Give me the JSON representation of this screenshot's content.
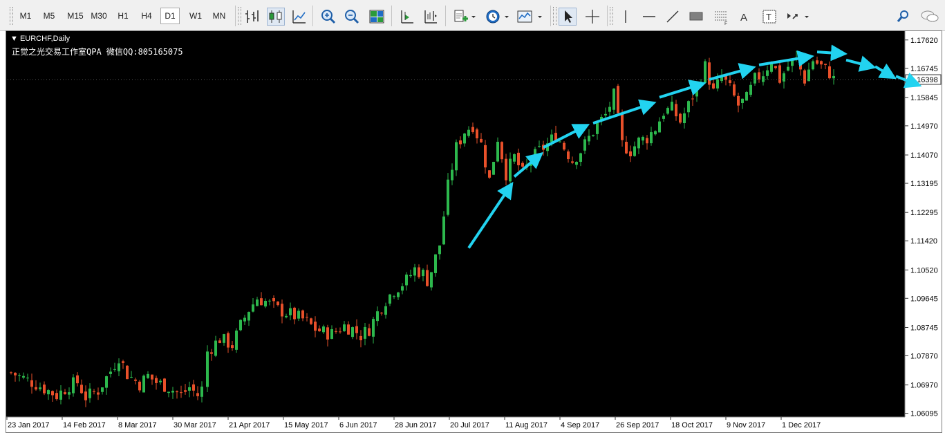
{
  "toolbar": {
    "timeframes": [
      "M1",
      "M5",
      "M15",
      "M30",
      "H1",
      "H4",
      "D1",
      "W1",
      "MN"
    ],
    "active_timeframe": "D1",
    "icons": [
      "bar-chart-icon",
      "candlestick-icon",
      "line-chart-icon",
      "zoom-in-icon",
      "zoom-out-icon",
      "tile-windows-icon",
      "auto-scroll-icon",
      "chart-shift-icon",
      "indicators-icon",
      "periodicity-clock-icon",
      "templates-icon",
      "cursor-icon",
      "crosshair-icon",
      "vertical-line-icon",
      "horizontal-line-icon",
      "trendline-icon",
      "rectangle-icon",
      "fibonacci-icon",
      "text-icon",
      "text-label-icon",
      "arrows-icon",
      "search-icon",
      "chat-icon"
    ]
  },
  "chart": {
    "symbol_label": "EURCHF,Daily",
    "annotation": "正觉之光交易工作室QPA 微信QQ:805165075",
    "colors": {
      "background": "#000000",
      "bull": "#2db84d",
      "bear": "#e8502a",
      "wick": "#cfcfcf",
      "arrow": "#22d3f0",
      "axis_text": "#000000"
    }
  },
  "chart_data": {
    "type": "candlestick",
    "symbol": "EURCHF",
    "timeframe": "Daily",
    "current_price": "1.16398",
    "y_ticks": [
      "1.17620",
      "1.16745",
      "1.15845",
      "1.14970",
      "1.14070",
      "1.13195",
      "1.12295",
      "1.11420",
      "1.10520",
      "1.09645",
      "1.08745",
      "1.07870",
      "1.06970",
      "1.06095"
    ],
    "x_ticks": [
      "23 Jan 2017",
      "14 Feb 2017",
      "8 Mar 2017",
      "30 Mar 2017",
      "21 Apr 2017",
      "15 May 2017",
      "6 Jun 2017",
      "28 Jun 2017",
      "20 Jul 2017",
      "11 Aug 2017",
      "4 Sep 2017",
      "26 Sep 2017",
      "18 Oct 2017",
      "9 Nov 2017",
      "1 Dec 2017"
    ],
    "ylim": [
      1.0598,
      1.1785
    ],
    "close_path": [
      [
        0,
        1.0735
      ],
      [
        6,
        1.07
      ],
      [
        11,
        1.0665
      ],
      [
        14,
        1.0695
      ],
      [
        16,
        1.0705
      ],
      [
        18,
        1.066
      ],
      [
        21,
        1.068
      ],
      [
        24,
        1.074
      ],
      [
        26,
        1.0785
      ],
      [
        28,
        1.073
      ],
      [
        31,
        1.07
      ],
      [
        33,
        1.0725
      ],
      [
        35,
        1.0705
      ],
      [
        38,
        1.069
      ],
      [
        41,
        1.0665
      ],
      [
        43,
        1.069
      ],
      [
        45,
        1.0665
      ],
      [
        46,
        1.0685
      ],
      [
        47,
        1.08
      ],
      [
        50,
        1.084
      ],
      [
        53,
        1.082
      ],
      [
        55,
        1.088
      ],
      [
        57,
        1.093
      ],
      [
        59,
        1.0965
      ],
      [
        61,
        1.0955
      ],
      [
        64,
        1.093
      ],
      [
        67,
        1.0915
      ],
      [
        70,
        1.09
      ],
      [
        73,
        1.087
      ],
      [
        75,
        1.086
      ],
      [
        77,
        1.0855
      ],
      [
        80,
        1.088
      ],
      [
        82,
        1.087
      ],
      [
        84,
        1.085
      ],
      [
        86,
        1.087
      ],
      [
        88,
        1.092
      ],
      [
        90,
        1.096
      ],
      [
        92,
        1.099
      ],
      [
        95,
        1.102
      ],
      [
        97,
        1.1055
      ],
      [
        99,
        1.104
      ],
      [
        100,
        1.102
      ],
      [
        101,
        1.105
      ],
      [
        103,
        1.113
      ],
      [
        105,
        1.131
      ],
      [
        107,
        1.143
      ],
      [
        109,
        1.148
      ],
      [
        111,
        1.15
      ],
      [
        113,
        1.144
      ],
      [
        115,
        1.133
      ],
      [
        117,
        1.146
      ],
      [
        119,
        1.135
      ],
      [
        121,
        1.14
      ],
      [
        123,
        1.135
      ],
      [
        125,
        1.139
      ],
      [
        127,
        1.142
      ],
      [
        129,
        1.144
      ],
      [
        131,
        1.147
      ],
      [
        133,
        1.143
      ],
      [
        135,
        1.139
      ],
      [
        137,
        1.142
      ],
      [
        139,
        1.146
      ],
      [
        141,
        1.15
      ],
      [
        143,
        1.153
      ],
      [
        145,
        1.159
      ],
      [
        147,
        1.144
      ],
      [
        149,
        1.142
      ],
      [
        151,
        1.145
      ],
      [
        153,
        1.146
      ],
      [
        155,
        1.149
      ],
      [
        157,
        1.154
      ],
      [
        159,
        1.155
      ],
      [
        161,
        1.151
      ],
      [
        163,
        1.156
      ],
      [
        165,
        1.162
      ],
      [
        167,
        1.168
      ],
      [
        169,
        1.16
      ],
      [
        171,
        1.165
      ],
      [
        173,
        1.161
      ],
      [
        175,
        1.156
      ],
      [
        177,
        1.158
      ],
      [
        179,
        1.164
      ],
      [
        181,
        1.166
      ],
      [
        183,
        1.17
      ],
      [
        185,
        1.164
      ],
      [
        187,
        1.168
      ],
      [
        189,
        1.17
      ],
      [
        191,
        1.164
      ],
      [
        193,
        1.17
      ],
      [
        195,
        1.168
      ],
      [
        197,
        1.166
      ],
      [
        198,
        1.164
      ]
    ],
    "arrows": [
      [
        [
          110,
          1.112
        ],
        [
          120,
          1.131
        ]
      ],
      [
        [
          121,
          1.134
        ],
        [
          127,
          1.1405
        ]
      ],
      [
        [
          128,
          1.143
        ],
        [
          138,
          1.1495
        ]
      ],
      [
        [
          140,
          1.1505
        ],
        [
          154,
          1.1565
        ]
      ],
      [
        [
          156,
          1.1585
        ],
        [
          166,
          1.1625
        ]
      ],
      [
        [
          168,
          1.164
        ],
        [
          178,
          1.1675
        ]
      ],
      [
        [
          180,
          1.1685
        ],
        [
          192,
          1.171
        ]
      ],
      [
        [
          194,
          1.1725
        ],
        [
          200,
          1.172
        ]
      ],
      [
        [
          201,
          1.17
        ],
        [
          207,
          1.168
        ]
      ],
      [
        [
          208,
          1.168
        ],
        [
          212,
          1.165
        ]
      ],
      [
        [
          213,
          1.165
        ],
        [
          218,
          1.1625
        ]
      ]
    ]
  }
}
